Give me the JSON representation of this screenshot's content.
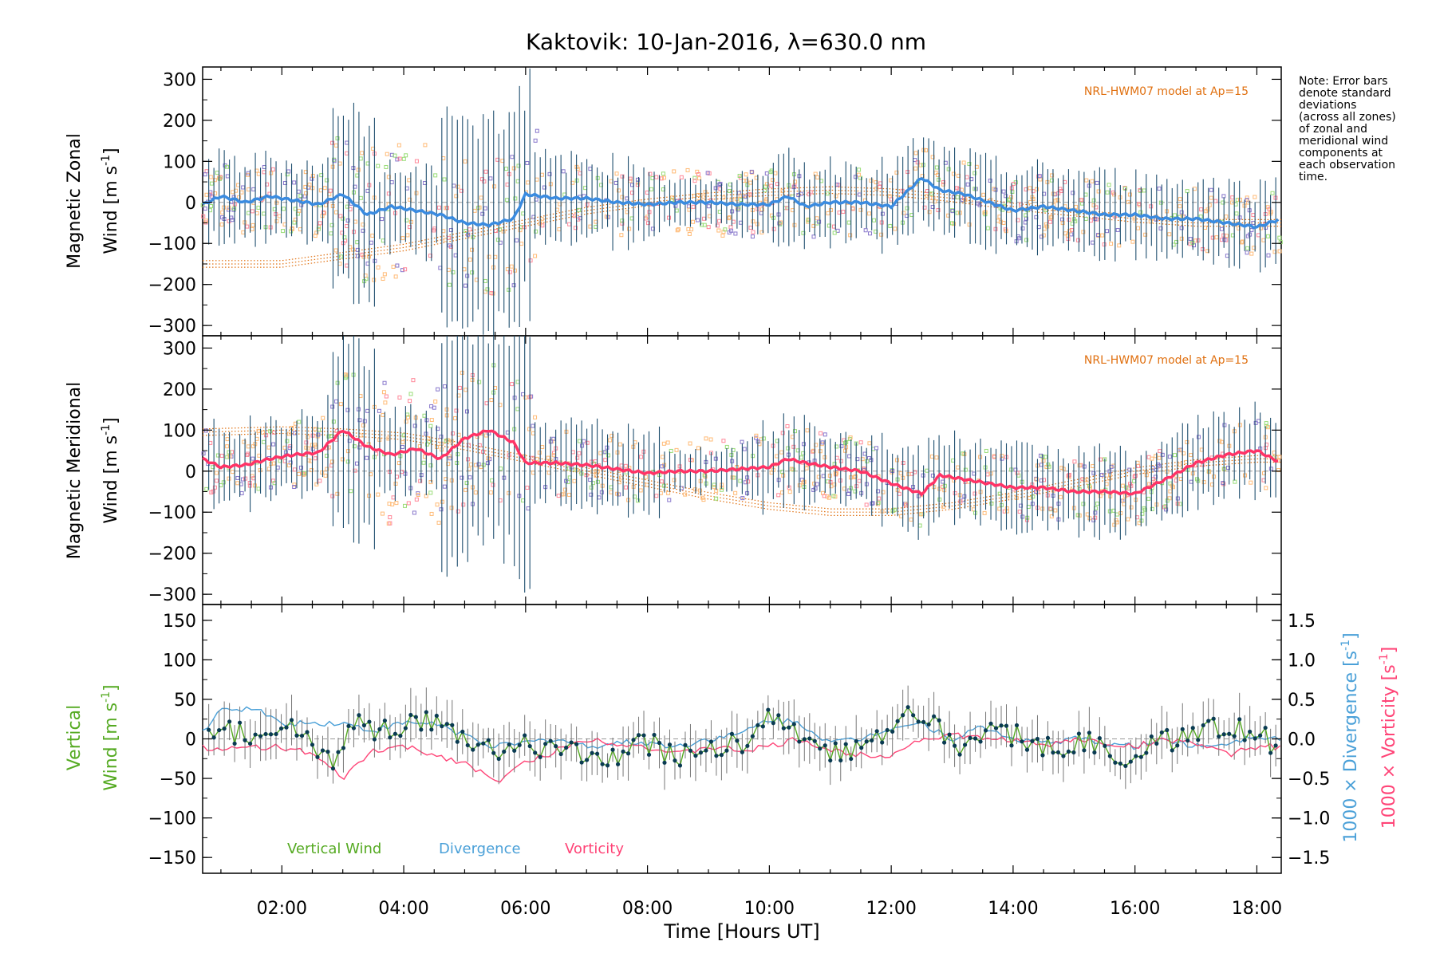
{
  "title": "Kaktovik: 10-Jan-2016, λ=630.0 nm",
  "note": [
    "Note: Error bars",
    "denote standard",
    "deviations",
    "(across all zones)",
    "of zonal and",
    "meridional wind",
    "components at",
    "each observation",
    "time."
  ],
  "x_axis": {
    "label": "Time [Hours UT]",
    "range_hours": [
      0.7,
      18.4
    ],
    "ticks": [
      2,
      4,
      6,
      8,
      10,
      12,
      14,
      16,
      18
    ],
    "tick_labels": [
      "02:00",
      "04:00",
      "06:00",
      "08:00",
      "10:00",
      "12:00",
      "14:00",
      "16:00",
      "18:00"
    ]
  },
  "colors": {
    "zonal_mean": "#3a8be0",
    "meridional_mean": "#ff3366",
    "errorbar": "#1f4f6f",
    "zone_orange": "#ffbb77",
    "zone_purple": "#8877cc",
    "zone_green": "#99dd77",
    "zone_pink": "#ff8899",
    "model": "#e07010",
    "vertical": "#55aa22",
    "divergence": "#4aa0d8",
    "vorticity": "#ff4477",
    "vz_points": "#0a3b52",
    "vz_err": "#777777"
  },
  "panels": {
    "zonal": {
      "ylabel_line1": "Magnetic Zonal",
      "ylabel_line2": "Wind [m s",
      "ylabel_sup": "-1",
      "ylabel_end": "]",
      "ylim": [
        -325,
        330
      ],
      "ticks": [
        -300,
        -200,
        -100,
        0,
        100,
        200,
        300
      ],
      "tick_labels": [
        "−300",
        "−200",
        "−100",
        "0",
        "100",
        "200",
        "300"
      ],
      "model_label": "NRL-HWM07 model at Ap=15"
    },
    "meridional": {
      "ylabel_line1": "Magnetic Meridional",
      "ylabel_line2": "Wind [m s",
      "ylabel_sup": "-1",
      "ylabel_end": "]",
      "ylim": [
        -325,
        330
      ],
      "ticks": [
        -300,
        -200,
        -100,
        0,
        100,
        200,
        300
      ],
      "tick_labels": [
        "−300",
        "−200",
        "−100",
        "0",
        "100",
        "200",
        "300"
      ],
      "model_label": "NRL-HWM07 model at Ap=15"
    },
    "vertical": {
      "ylabel_line1": "Vertical",
      "ylabel_line2": "Wind [m s",
      "ylabel_sup": "-1",
      "ylabel_end": "]",
      "ylim": [
        -170,
        170
      ],
      "ticks": [
        -150,
        -100,
        -50,
        0,
        50,
        100,
        150
      ],
      "tick_labels": [
        "−150",
        "−100",
        "−50",
        "0",
        "50",
        "100",
        "150"
      ],
      "right_ylim": [
        -1.7,
        1.7
      ],
      "right_ticks": [
        -1.5,
        -1.0,
        -0.5,
        0.0,
        0.5,
        1.0,
        1.5
      ],
      "right_tick_labels": [
        "−1.5",
        "−1.0",
        "−0.5",
        "0.0",
        "0.5",
        "1.0",
        "1.5"
      ],
      "right_label_div": "1000 × Divergence [s",
      "right_label_vor": "1000 × Vorticity [s",
      "right_label_sup": "-1",
      "right_label_end": "]",
      "legend": [
        "Vertical Wind",
        "Divergence",
        "Vorticity"
      ]
    }
  },
  "chart_data": {
    "type": "line",
    "title": "Kaktovik: 10-Jan-2016, λ=630.0 nm",
    "xlabel": "Time [Hours UT]",
    "xlim": [
      0.7,
      18.4
    ],
    "series": [
      {
        "name": "Magnetic Zonal Wind",
        "panel": "zonal",
        "x": [
          0.7,
          1.0,
          1.4,
          1.8,
          2.2,
          2.6,
          3.0,
          3.4,
          3.8,
          4.2,
          4.6,
          5.0,
          5.4,
          5.8,
          6.0,
          6.5,
          7.0,
          7.5,
          8.0,
          8.5,
          9.0,
          9.5,
          10.0,
          10.3,
          10.6,
          11.0,
          11.5,
          12.0,
          12.5,
          12.8,
          13.2,
          13.6,
          14.0,
          14.5,
          15.0,
          15.5,
          16.0,
          16.5,
          17.0,
          17.5,
          18.0,
          18.4
        ],
        "y": [
          -5,
          15,
          0,
          15,
          5,
          -5,
          20,
          -30,
          -10,
          -20,
          -30,
          -50,
          -55,
          -40,
          20,
          10,
          10,
          0,
          -5,
          0,
          0,
          -5,
          -5,
          15,
          -10,
          0,
          0,
          -10,
          60,
          30,
          20,
          0,
          -20,
          -10,
          -20,
          -30,
          -30,
          -40,
          -40,
          -50,
          -60,
          -40
        ]
      },
      {
        "name": "Magnetic Meridional Wind",
        "panel": "meridional",
        "x": [
          0.7,
          1.0,
          1.4,
          1.8,
          2.2,
          2.6,
          3.0,
          3.4,
          3.8,
          4.2,
          4.6,
          5.0,
          5.4,
          5.8,
          6.0,
          6.5,
          7.0,
          7.5,
          8.0,
          8.5,
          9.0,
          9.5,
          10.0,
          10.3,
          10.6,
          11.0,
          11.5,
          12.0,
          12.5,
          12.8,
          13.2,
          13.6,
          14.0,
          14.5,
          15.0,
          15.5,
          16.0,
          16.5,
          17.0,
          17.5,
          18.0,
          18.4
        ],
        "y": [
          30,
          10,
          15,
          30,
          40,
          45,
          100,
          60,
          40,
          55,
          30,
          80,
          100,
          70,
          20,
          20,
          15,
          5,
          -5,
          0,
          0,
          5,
          10,
          30,
          20,
          10,
          0,
          -30,
          -55,
          -10,
          -20,
          -30,
          -40,
          -40,
          -50,
          -50,
          -55,
          -20,
          20,
          40,
          50,
          20
        ]
      },
      {
        "name": "Vertical Wind",
        "panel": "vertical",
        "x": [
          0.7,
          1.0,
          1.3,
          1.6,
          2.0,
          2.4,
          2.8,
          3.2,
          3.6,
          4.0,
          4.4,
          4.8,
          5.2,
          5.6,
          6.0,
          6.4,
          6.8,
          7.2,
          7.6,
          8.0,
          8.4,
          8.8,
          9.2,
          9.6,
          10.0,
          10.4,
          10.8,
          11.2,
          11.6,
          12.0,
          12.4,
          12.8,
          13.2,
          13.6,
          14.0,
          14.4,
          14.8,
          15.2,
          15.6,
          16.0,
          16.4,
          16.8,
          17.2,
          17.6,
          18.0,
          18.4
        ],
        "y": [
          -5,
          5,
          10,
          0,
          15,
          10,
          -30,
          20,
          10,
          15,
          20,
          5,
          -10,
          -20,
          -5,
          -10,
          -20,
          -30,
          -15,
          -5,
          -20,
          -25,
          -10,
          -5,
          25,
          10,
          -10,
          -20,
          0,
          10,
          40,
          10,
          -10,
          20,
          5,
          -10,
          -15,
          0,
          -20,
          -20,
          -5,
          0,
          20,
          10,
          10,
          -20
        ]
      },
      {
        "name": "Divergence",
        "panel": "vertical",
        "x": [
          0.7,
          1.0,
          1.5,
          2.0,
          2.5,
          3.0,
          3.5,
          4.0,
          4.5,
          5.0,
          5.5,
          6.0,
          6.5,
          7.0,
          7.5,
          8.0,
          8.5,
          9.0,
          9.5,
          10.0,
          10.5,
          11.0,
          11.5,
          12.0,
          12.5,
          13.0,
          13.5,
          14.0,
          14.5,
          15.0,
          15.5,
          16.0,
          16.5,
          17.0,
          17.5,
          18.0,
          18.4
        ],
        "y": [
          0.1,
          0.35,
          0.4,
          0.2,
          0.2,
          0.2,
          0.1,
          0.2,
          0.2,
          0.05,
          -0.1,
          -0.05,
          0.0,
          -0.1,
          -0.05,
          -0.05,
          -0.1,
          0.0,
          0.05,
          0.25,
          0.2,
          -0.05,
          0.0,
          0.15,
          0.2,
          0.0,
          0.15,
          0.0,
          -0.05,
          0.0,
          -0.05,
          -0.1,
          0.0,
          -0.1,
          -0.05,
          0.05,
          0.0
        ]
      },
      {
        "name": "Vorticity",
        "panel": "vertical",
        "x": [
          0.7,
          1.0,
          1.5,
          2.0,
          2.5,
          3.0,
          3.5,
          4.0,
          4.5,
          5.0,
          5.5,
          6.0,
          6.5,
          7.0,
          7.5,
          8.0,
          8.5,
          9.0,
          9.5,
          10.0,
          10.5,
          11.0,
          11.5,
          12.0,
          12.5,
          13.0,
          13.5,
          14.0,
          14.5,
          15.0,
          15.5,
          16.0,
          16.5,
          17.0,
          17.5,
          18.0,
          18.4
        ],
        "y": [
          -0.1,
          -0.15,
          -0.1,
          -0.1,
          -0.2,
          -0.5,
          -0.15,
          -0.1,
          -0.2,
          -0.3,
          -0.55,
          -0.3,
          -0.15,
          0.0,
          -0.05,
          -0.1,
          -0.2,
          -0.1,
          -0.15,
          -0.1,
          0.0,
          -0.15,
          -0.2,
          -0.2,
          0.0,
          0.05,
          0.0,
          0.0,
          -0.1,
          0.0,
          -0.05,
          -0.1,
          0.0,
          -0.05,
          -0.2,
          -0.1,
          -0.1
        ]
      }
    ],
    "model": [
      {
        "panel": "zonal",
        "x": [
          0.7,
          2.0,
          3.0,
          4.0,
          5.0,
          6.0,
          7.0,
          8.0,
          9.0,
          10.0,
          11.0,
          12.0,
          13.0,
          14.0,
          15.0,
          16.0,
          17.0,
          18.0,
          18.4
        ],
        "y": [
          -150,
          -150,
          -130,
          -110,
          -80,
          -50,
          -20,
          0,
          15,
          25,
          30,
          25,
          10,
          -10,
          -25,
          -40,
          -50,
          -50,
          -50
        ]
      },
      {
        "panel": "meridional",
        "x": [
          0.7,
          2.0,
          3.0,
          4.0,
          5.0,
          6.0,
          7.0,
          8.0,
          9.0,
          10.0,
          11.0,
          12.0,
          13.0,
          14.0,
          15.0,
          16.0,
          17.0,
          18.0,
          18.4
        ],
        "y": [
          95,
          100,
          95,
          85,
          60,
          30,
          0,
          -30,
          -60,
          -85,
          -100,
          -100,
          -85,
          -60,
          -30,
          0,
          20,
          30,
          30
        ]
      }
    ]
  }
}
